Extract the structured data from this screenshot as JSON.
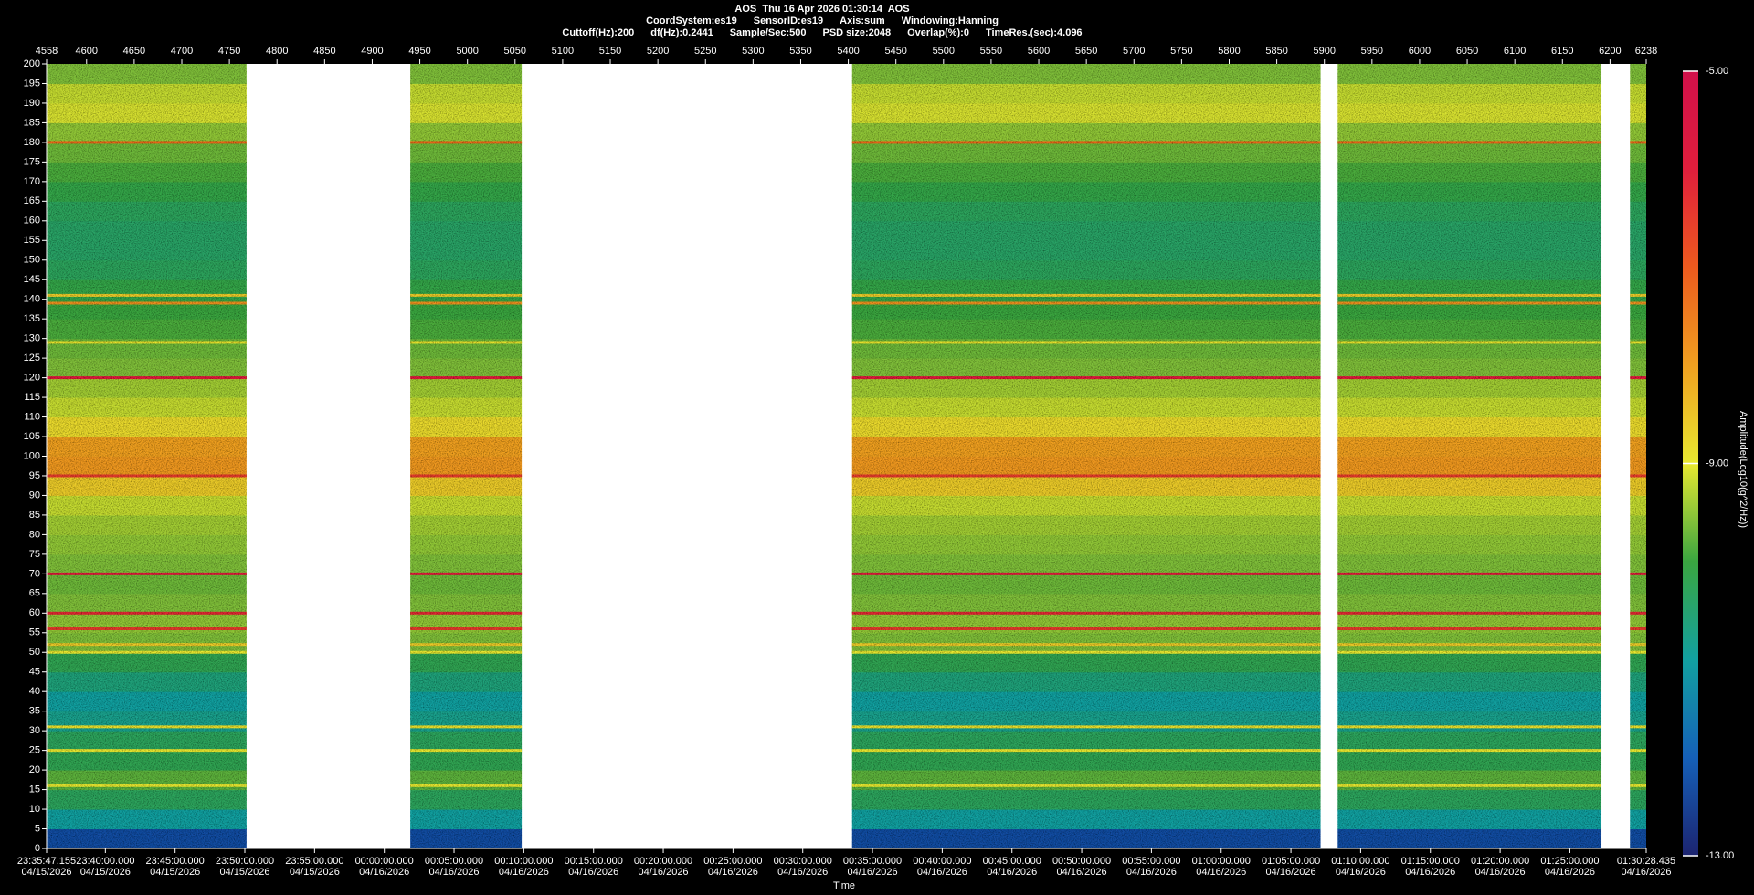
{
  "chart_data": {
    "type": "spectrogram",
    "title": "AOS  Thu 16 Apr 2026 01:30:14  AOS",
    "info_line1": [
      "CoordSystem:es19",
      "SensorID:es19",
      "Axis:sum",
      "Windowing:Hanning"
    ],
    "info_line2": [
      "Cuttoff(Hz):200",
      "df(Hz):0.2441",
      "Sample/Sec:500",
      "PSD size:2048",
      "Overlap(%):0",
      "TimeRes.(sec):4.096"
    ],
    "xlabel": "Time",
    "colorbar_label": "Amplitude(Log10(g^2/Hz))",
    "xlim": [
      4558,
      6238
    ],
    "xticks": [
      4558,
      4600,
      4650,
      4700,
      4750,
      4800,
      4850,
      4900,
      4950,
      5000,
      5050,
      5100,
      5150,
      5200,
      5250,
      5300,
      5350,
      5400,
      5450,
      5500,
      5550,
      5600,
      5650,
      5700,
      5750,
      5800,
      5850,
      5900,
      5950,
      6000,
      6050,
      6100,
      6150,
      6200,
      6238
    ],
    "time_ticks": [
      {
        "value": 4558,
        "label": "23:35:47.155",
        "date": "04/15/2026"
      },
      {
        "value": 4619.73,
        "label": "23:40:00.000",
        "date": "04/15/2026"
      },
      {
        "value": 4692.97,
        "label": "23:45:00.000",
        "date": "04/15/2026"
      },
      {
        "value": 4766.21,
        "label": "23:50:00.000",
        "date": "04/15/2026"
      },
      {
        "value": 4839.46,
        "label": "23:55:00.000",
        "date": "04/15/2026"
      },
      {
        "value": 4912.7,
        "label": "00:00:00.000",
        "date": "04/16/2026"
      },
      {
        "value": 4985.94,
        "label": "00:05:00.000",
        "date": "04/16/2026"
      },
      {
        "value": 5059.18,
        "label": "00:10:00.000",
        "date": "04/16/2026"
      },
      {
        "value": 5132.43,
        "label": "00:15:00.000",
        "date": "04/16/2026"
      },
      {
        "value": 5205.67,
        "label": "00:20:00.000",
        "date": "04/16/2026"
      },
      {
        "value": 5278.91,
        "label": "00:25:00.000",
        "date": "04/16/2026"
      },
      {
        "value": 5352.15,
        "label": "00:30:00.000",
        "date": "04/16/2026"
      },
      {
        "value": 5425.39,
        "label": "00:35:00.000",
        "date": "04/16/2026"
      },
      {
        "value": 5498.64,
        "label": "00:40:00.000",
        "date": "04/16/2026"
      },
      {
        "value": 5571.88,
        "label": "00:45:00.000",
        "date": "04/16/2026"
      },
      {
        "value": 5645.12,
        "label": "00:50:00.000",
        "date": "04/16/2026"
      },
      {
        "value": 5718.36,
        "label": "00:55:00.000",
        "date": "04/16/2026"
      },
      {
        "value": 5791.61,
        "label": "01:00:00.000",
        "date": "04/16/2026"
      },
      {
        "value": 5864.85,
        "label": "01:05:00.000",
        "date": "04/16/2026"
      },
      {
        "value": 5938.09,
        "label": "01:10:00.000",
        "date": "04/16/2026"
      },
      {
        "value": 6011.33,
        "label": "01:15:00.000",
        "date": "04/16/2026"
      },
      {
        "value": 6084.58,
        "label": "01:20:00.000",
        "date": "04/16/2026"
      },
      {
        "value": 6157.82,
        "label": "01:25:00.000",
        "date": "04/16/2026"
      },
      {
        "value": 6238,
        "label": "01:30:28.435",
        "date": "04/16/2026"
      }
    ],
    "ylim": [
      0,
      200
    ],
    "yticks": [
      0,
      5,
      10,
      15,
      20,
      25,
      30,
      35,
      40,
      45,
      50,
      55,
      60,
      65,
      70,
      75,
      80,
      85,
      90,
      95,
      100,
      105,
      110,
      115,
      120,
      125,
      130,
      135,
      140,
      145,
      150,
      155,
      160,
      165,
      170,
      175,
      180,
      185,
      190,
      195,
      200
    ],
    "segments": [
      [
        4558,
        4768
      ],
      [
        4940,
        5057
      ],
      [
        5404,
        5896
      ],
      [
        5914,
        6191
      ],
      [
        6221,
        6238
      ]
    ],
    "band_edges": [
      0,
      5,
      10,
      15,
      20,
      25,
      30,
      35,
      40,
      45,
      50,
      55,
      60,
      65,
      70,
      75,
      80,
      85,
      90,
      95,
      100,
      105,
      110,
      115,
      120,
      125,
      130,
      135,
      140,
      145,
      150,
      155,
      160,
      165,
      170,
      175,
      180,
      185,
      190,
      195,
      200
    ],
    "band_amp": [
      -12.3,
      -11,
      -10.3,
      -9.8,
      -10.2,
      -10.3,
      -10.8,
      -11,
      -10.6,
      -10.2,
      -9.6,
      -9.5,
      -9.6,
      -9.7,
      -9.6,
      -9.5,
      -9.4,
      -9.2,
      -8.6,
      -7.9,
      -8,
      -8.8,
      -9.2,
      -9.4,
      -9.6,
      -9.7,
      -9.9,
      -10,
      -10.1,
      -10.3,
      -10.4,
      -10.4,
      -10.3,
      -10.1,
      -9.9,
      -9.7,
      -9.5,
      -9.1,
      -9.2,
      -9.6
    ],
    "lines": [
      {
        "freq": 180,
        "amp": -7.2
      },
      {
        "freq": 141,
        "amp": -8.6
      },
      {
        "freq": 139,
        "amp": -7.8
      },
      {
        "freq": 129,
        "amp": -8.9
      },
      {
        "freq": 120,
        "amp": -6
      },
      {
        "freq": 95,
        "amp": -6.5
      },
      {
        "freq": 70,
        "amp": -6
      },
      {
        "freq": 60,
        "amp": -6.2
      },
      {
        "freq": 56,
        "amp": -6.5
      },
      {
        "freq": 52,
        "amp": -8.6
      },
      {
        "freq": 50,
        "amp": -9
      },
      {
        "freq": 31,
        "amp": -8.9
      },
      {
        "freq": 25,
        "amp": -9
      },
      {
        "freq": 16,
        "amp": -9
      }
    ],
    "colorbar": {
      "clim": [
        -13,
        -5
      ],
      "colors": [
        "#1c2470",
        "#1560b8",
        "#12a0a0",
        "#3aa540",
        "#e8e830",
        "#f0a020",
        "#ec5a1e",
        "#e01e3c",
        "#d0104a"
      ],
      "ticks": [
        {
          "value": -5,
          "label": "-5.00"
        },
        {
          "value": -9,
          "label": "-9.00"
        },
        {
          "value": -13,
          "label": "-13.00"
        }
      ]
    }
  }
}
